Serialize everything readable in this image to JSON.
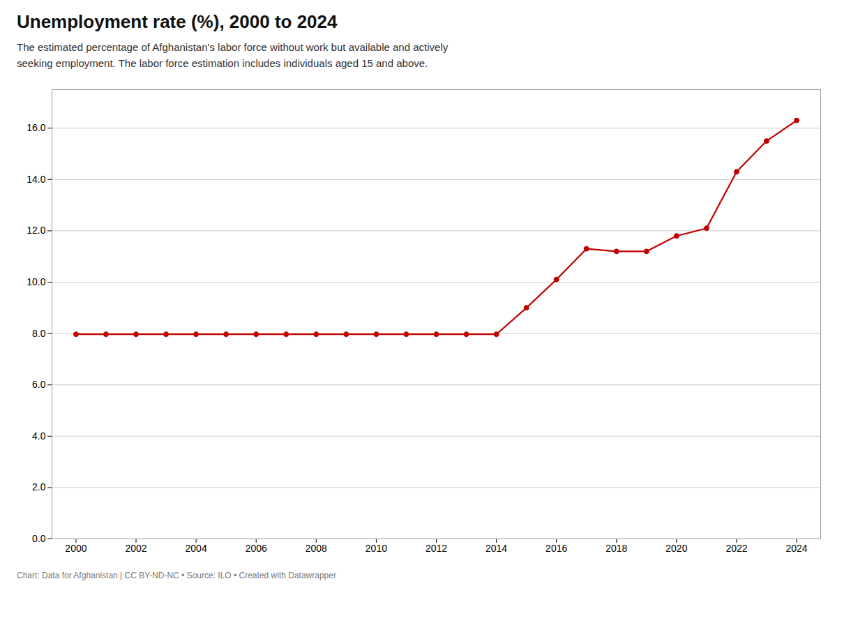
{
  "chart_data": {
    "type": "line",
    "title": "Unemployment rate (%), 2000 to 2024",
    "subtitle": "The estimated percentage of Afghanistan's labor force without work but available and actively\nseeking employment. The labor force estimation includes individuals aged 15 and above.",
    "caption": "Chart: Data for Afghanistan | CC BY-ND-NC • Source: ILO • Created with Datawrapper",
    "x": [
      2000,
      2001,
      2002,
      2003,
      2004,
      2005,
      2006,
      2007,
      2008,
      2009,
      2010,
      2011,
      2012,
      2013,
      2014,
      2015,
      2016,
      2017,
      2018,
      2019,
      2020,
      2021,
      2022,
      2023,
      2024
    ],
    "values": [
      7.97,
      7.97,
      7.97,
      7.97,
      7.97,
      7.97,
      7.97,
      7.97,
      7.97,
      7.97,
      7.97,
      7.97,
      7.97,
      7.97,
      7.97,
      9.0,
      10.1,
      11.3,
      11.2,
      11.2,
      11.8,
      12.1,
      14.3,
      15.5,
      16.3
    ],
    "color": "#c00000",
    "marker": "circle",
    "grid": "y",
    "xlim": [
      1999.2,
      2024.8
    ],
    "xticks": [
      2000,
      2002,
      2004,
      2006,
      2008,
      2010,
      2012,
      2014,
      2016,
      2018,
      2020,
      2022,
      2024
    ],
    "ylim": [
      0.0,
      17.5
    ],
    "yticks": [
      {
        "value": 0.0,
        "label": "0.0"
      },
      {
        "value": 2.0,
        "label": "2.0"
      },
      {
        "value": 4.0,
        "label": "4.0"
      },
      {
        "value": 6.0,
        "label": "6.0"
      },
      {
        "value": 8.0,
        "label": "8.0"
      },
      {
        "value": 10.0,
        "label": "10.0"
      },
      {
        "value": 12.0,
        "label": "12.0"
      },
      {
        "value": 14.0,
        "label": "14.0"
      },
      {
        "value": 16.0,
        "label": "16.0"
      }
    ]
  }
}
